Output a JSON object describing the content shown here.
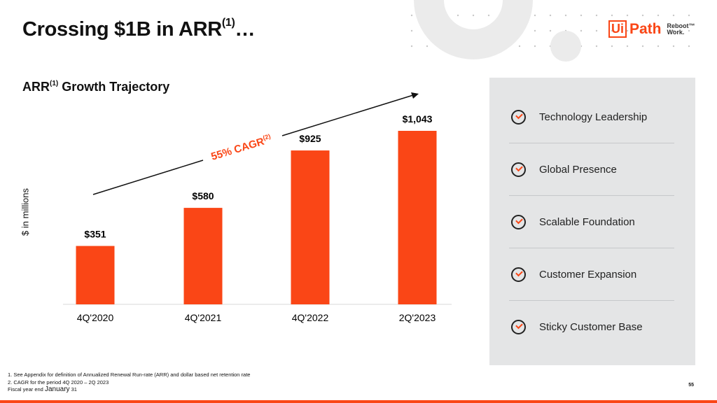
{
  "header": {
    "title": "Crossing $1B in ARR",
    "title_sup": "(1)",
    "title_suffix": "…"
  },
  "logo": {
    "text": "UiPath",
    "ui": "Ui",
    "path": "Path",
    "tagline1": "Reboot™",
    "tagline2": "Work."
  },
  "subtitle": {
    "pre": "ARR",
    "sup": "(1)",
    "post": " Growth Trajectory"
  },
  "chart_data": {
    "type": "bar",
    "categories": [
      "4Q'2020",
      "4Q'2021",
      "4Q'2022",
      "2Q'2023"
    ],
    "values": [
      351,
      580,
      925,
      1043
    ],
    "data_labels": [
      "$351",
      "$580",
      "$925",
      "$1,043"
    ],
    "ylabel": "$ in millions",
    "ylim": [
      0,
      1100
    ],
    "grid": false,
    "bar_color": "#fa4616",
    "annotation": {
      "text": "55% CAGR",
      "sup": "(2)",
      "color": "#fa4616"
    }
  },
  "panel": {
    "items": [
      {
        "label": "Technology Leadership",
        "icon": "check-circle-icon"
      },
      {
        "label": "Global Presence",
        "icon": "check-circle-icon"
      },
      {
        "label": "Scalable Foundation",
        "icon": "check-circle-icon"
      },
      {
        "label": "Customer Expansion",
        "icon": "check-circle-icon"
      },
      {
        "label": "Sticky Customer Base",
        "icon": "check-circle-icon"
      }
    ]
  },
  "footnotes": {
    "n1": "1.   See Appendix for definition of Annualized Renewal Run-rate (ARR) and dollar based net retention rate",
    "n2": "2.   CAGR for the period 4Q 2020 – 2Q 2023",
    "fy_pre": "Fiscal year end ",
    "fy_month": "January",
    "fy_day": " 31"
  },
  "page_number": "55",
  "colors": {
    "accent": "#fa4616",
    "panel": "#e4e5e6"
  }
}
